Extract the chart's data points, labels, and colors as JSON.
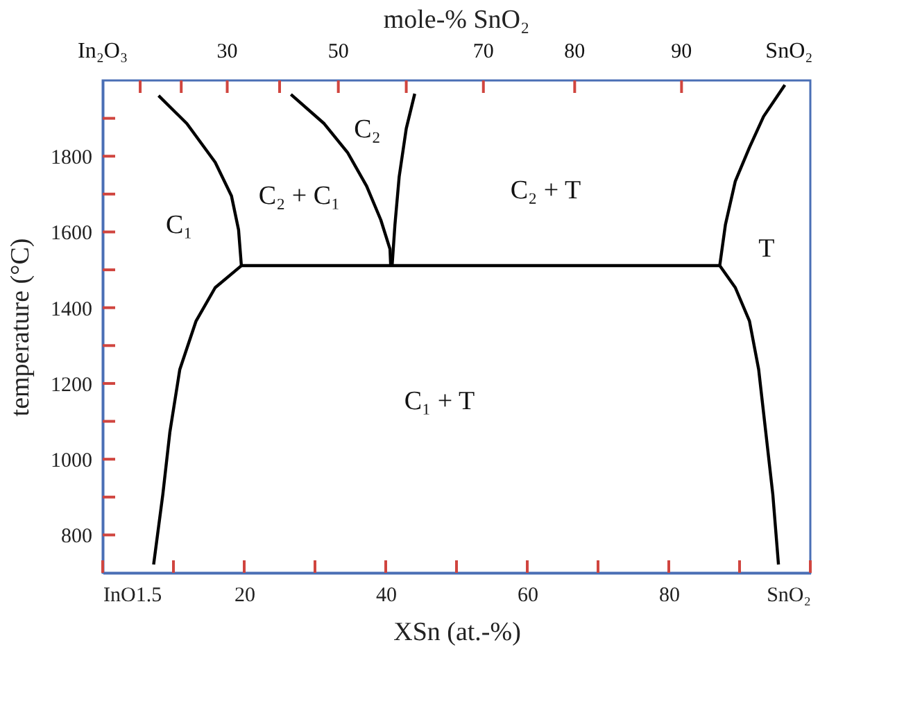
{
  "chart_data": {
    "type": "line",
    "xlabel": "XSn (at.-%)",
    "ylabel": "temperature (°C)",
    "x2label": "mole-% SnO₂",
    "xlim": [
      0,
      100
    ],
    "ylim": [
      700,
      2000
    ],
    "xticks": [
      {
        "value": 0,
        "label": "InO1.5"
      },
      {
        "value": 10,
        "label": null
      },
      20,
      {
        "value": 30,
        "label": null
      },
      40,
      {
        "value": 50,
        "label": null
      },
      60,
      {
        "value": 70,
        "label": null
      },
      80,
      {
        "value": 90,
        "label": null
      },
      {
        "value": 100,
        "label": "SnO₂"
      }
    ],
    "yticks": [
      800,
      {
        "value": 900,
        "label": null
      },
      1000,
      {
        "value": 1100,
        "label": null
      },
      1200,
      {
        "value": 1300,
        "label": null
      },
      1400,
      {
        "value": 1500,
        "label": null
      },
      1600,
      {
        "value": 1700,
        "label": null
      },
      1800,
      {
        "value": 1900,
        "label": null
      }
    ],
    "grid": false,
    "marker": "none",
    "line_style": "solid",
    "series": [
      {
        "color": "#000000",
        "x": [
          7.9,
          11.9,
          15.9,
          18.2,
          19.2,
          19.6
        ],
        "values": [
          1960,
          1886,
          1784,
          1695,
          1606,
          1511
        ]
      },
      {
        "color": "#000000",
        "x": [
          19.6,
          15.9,
          13.2,
          10.9,
          9.5,
          8.5,
          7.2
        ],
        "values": [
          1511,
          1453,
          1365,
          1237,
          1072,
          907,
          722
        ]
      },
      {
        "color": "#000000",
        "x": [
          26.6,
          31.3,
          34.6,
          37.3,
          39.3,
          40.6,
          40.7
        ],
        "values": [
          1963,
          1886,
          1810,
          1721,
          1632,
          1555,
          1511
        ]
      },
      {
        "color": "#000000",
        "x": [
          44.1,
          42.9,
          41.9,
          41.3,
          40.9
        ],
        "values": [
          1965,
          1873,
          1746,
          1619,
          1511
        ]
      },
      {
        "color": "#000000",
        "x": [
          19.6,
          87.2
        ],
        "values": [
          1511,
          1511
        ]
      },
      {
        "color": "#000000",
        "x": [
          87.2,
          88.0,
          89.4,
          91.4,
          93.4,
          96.4
        ],
        "values": [
          1511,
          1619,
          1734,
          1823,
          1905,
          1988
        ]
      },
      {
        "color": "#000000",
        "x": [
          87.2,
          89.4,
          91.4,
          92.7,
          93.7,
          94.7,
          95.5
        ],
        "values": [
          1511,
          1453,
          1365,
          1237,
          1072,
          907,
          722
        ]
      }
    ],
    "annotations": [
      "C₁",
      "C₂ + C₁",
      "C₂",
      "C₂ + T",
      "T",
      "C₁ + T",
      "In₂O₃",
      "30",
      "50",
      "70",
      "80",
      "90",
      "SnO₂"
    ]
  }
}
